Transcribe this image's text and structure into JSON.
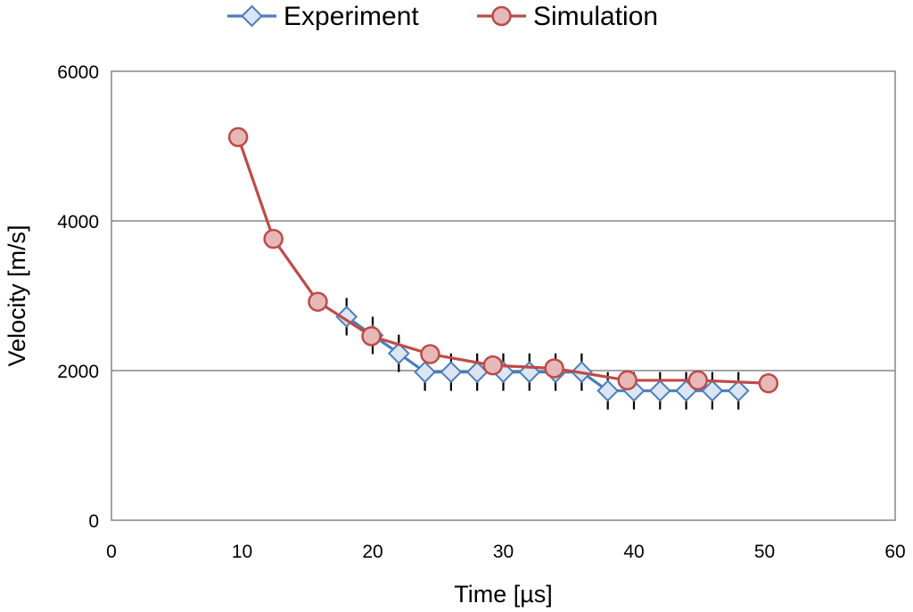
{
  "chart_data": {
    "type": "line",
    "title": "",
    "xlabel": "Time [µs]",
    "ylabel": "Velocity [m/s]",
    "xlim": [
      0,
      60
    ],
    "ylim": [
      0,
      6000
    ],
    "xticks": [
      0,
      10,
      20,
      30,
      40,
      50,
      60
    ],
    "yticks": [
      0,
      2000,
      4000,
      6000
    ],
    "xtick_labels": [
      "0",
      "10",
      "20",
      "30",
      "40",
      "50",
      "60"
    ],
    "ytick_labels": [
      "0",
      "2000",
      "4000",
      "6000"
    ],
    "grid": "horizontal",
    "legend_position": "top-center",
    "series": [
      {
        "name": "Experiment",
        "color": "#4a7ebb",
        "marker_fill": "#dbe5f4",
        "marker": "diamond",
        "error": 250,
        "x": [
          18,
          20,
          22,
          24,
          26,
          28,
          30,
          32,
          34,
          36,
          38,
          40,
          42,
          44,
          46,
          48
        ],
        "y": [
          2720,
          2470,
          2230,
          1980,
          1980,
          1980,
          1980,
          1980,
          1980,
          1980,
          1730,
          1730,
          1730,
          1730,
          1730,
          1730
        ]
      },
      {
        "name": "Simulation",
        "color": "#be4b48",
        "marker_fill": "#e6b9b8",
        "marker": "circle",
        "x": [
          9.7,
          12.4,
          15.8,
          19.9,
          24.4,
          29.2,
          33.9,
          39.5,
          44.9,
          50.3
        ],
        "y": [
          5120,
          3760,
          2920,
          2460,
          2220,
          2070,
          2030,
          1870,
          1870,
          1830
        ]
      }
    ]
  }
}
